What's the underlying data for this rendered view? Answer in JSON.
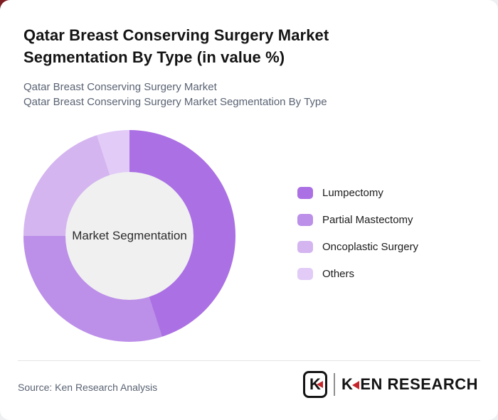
{
  "page": {
    "title_line1": "Qatar Breast Conserving Surgery Market",
    "title_line2": "Segmentation By Type (in value %)",
    "subtitle_line1": "Qatar Breast Conserving Surgery Market",
    "subtitle_line2": "Qatar Breast Conserving Surgery Market Segmentation By Type"
  },
  "colors": {
    "corner_accent": "#7E1E22",
    "page_bg": "#EDEFF1",
    "card_bg": "#FFFFFF",
    "center_circle": "#F0F0F1",
    "logo_red": "#C5262C",
    "muted_text": "#5A6373"
  },
  "chart_data": {
    "type": "pie",
    "donut": true,
    "title": "Qatar Breast Conserving Surgery Market Segmentation By Type (in value %)",
    "center_label": "Market Segmentation",
    "units": "value %",
    "legend_position": "right",
    "start_angle_deg": 0,
    "direction": "clockwise",
    "series": [
      {
        "name": "Lumpectomy",
        "value": 45,
        "color": "#AB70E3"
      },
      {
        "name": "Partial Mastectomy",
        "value": 30,
        "color": "#BC8FE9"
      },
      {
        "name": "Oncoplastic Surgery",
        "value": 20,
        "color": "#D4B5F0"
      },
      {
        "name": "Others",
        "value": 5,
        "color": "#E2CBF7"
      }
    ]
  },
  "footer": {
    "source": "Source: Ken Research Analysis",
    "logo": {
      "emblem_letter": "K",
      "wordmark_k": "K",
      "wordmark_rest": "EN RESEARCH"
    }
  }
}
